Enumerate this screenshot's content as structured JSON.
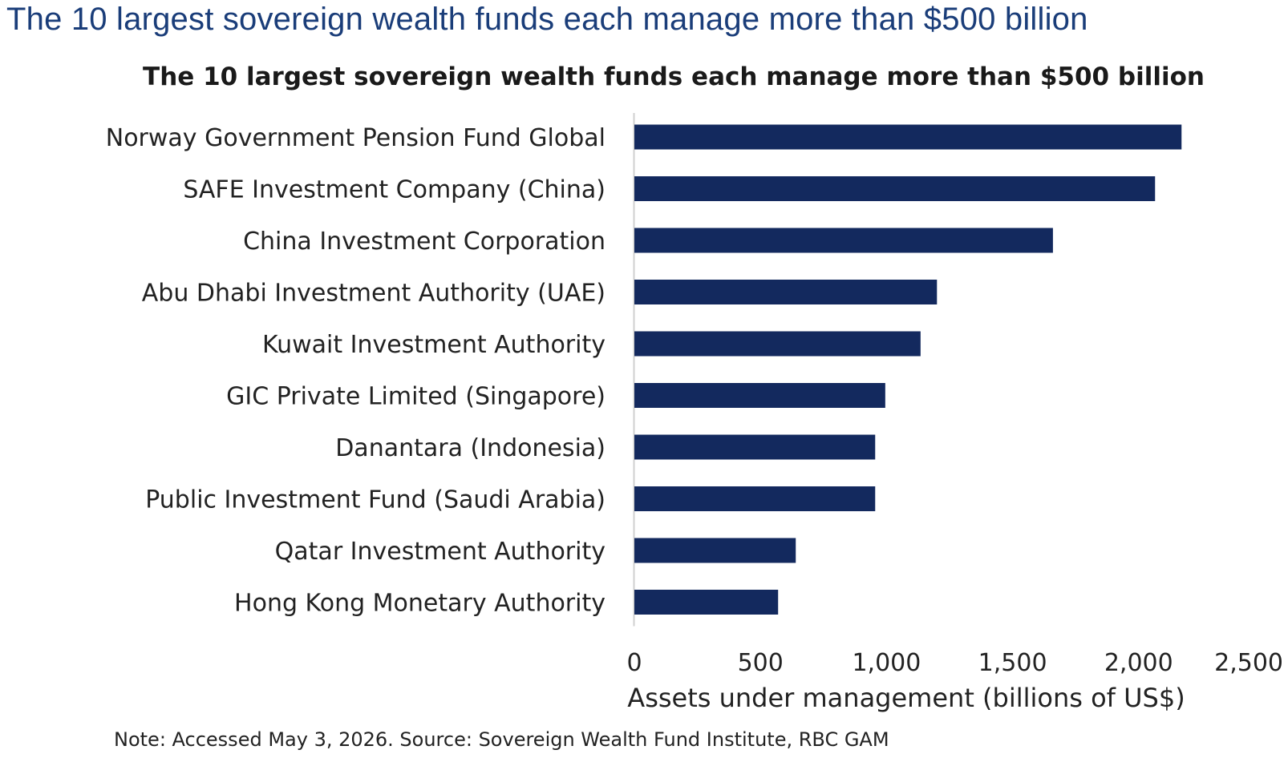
{
  "page": {
    "heading": "The 10 largest sovereign wealth funds each manage more than $500 billion"
  },
  "chart_data": {
    "type": "bar",
    "orientation": "horizontal",
    "title": "The 10 largest sovereign wealth funds each manage more than $500 billion",
    "categories": [
      "Norway Government Pension Fund Global",
      "SAFE Investment Company (China)",
      "China Investment Corporation",
      "Abu Dhabi Investment Authority (UAE)",
      "Kuwait Investment Authority",
      "GIC Private Limited (Singapore)",
      "Danantara (Indonesia)",
      "Public Investment Fund (Saudi Arabia)",
      "Qatar Investment Authority",
      "Hong Kong Monetary Authority"
    ],
    "values": [
      2170,
      2065,
      1660,
      1200,
      1135,
      995,
      955,
      955,
      640,
      570
    ],
    "xlabel": "Assets under management (billions of US$)",
    "ylabel": "",
    "xlim": [
      0,
      2500
    ],
    "x_ticks": [
      0,
      500,
      1000,
      1500,
      2000,
      2500
    ],
    "x_tick_labels": [
      "0",
      "500",
      "1,000",
      "1,500",
      "2,000",
      "2,500"
    ],
    "grid": false,
    "bar_color": "#13295e",
    "axis_color": "#d0d0d0",
    "note": "Note: Accessed May 3, 2026. Source: Sovereign Wealth Fund Institute, RBC GAM"
  }
}
